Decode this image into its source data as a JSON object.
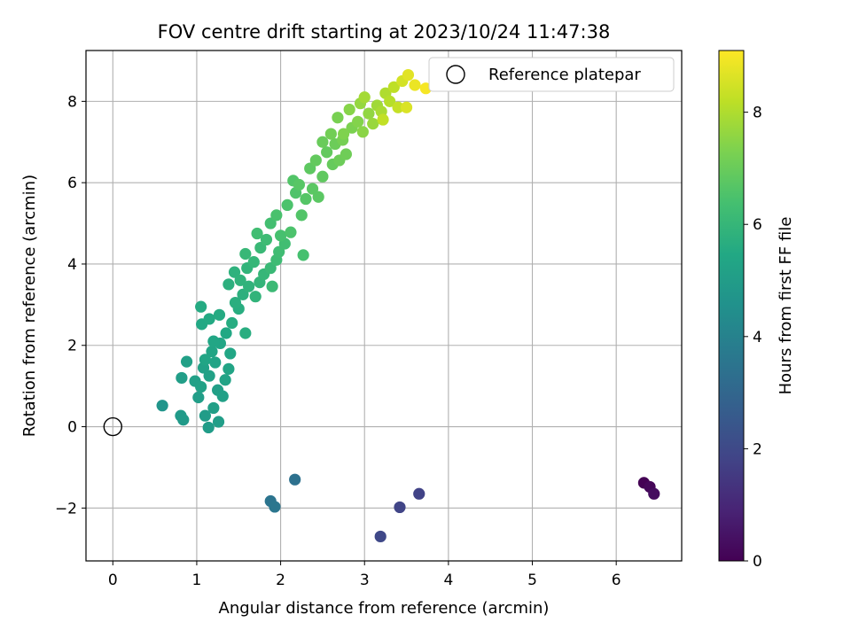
{
  "chart_data": {
    "type": "scatter",
    "title": "FOV centre drift starting at 2023/10/24 11:47:38",
    "xlabel": "Angular distance from reference (arcmin)",
    "ylabel": "Rotation from reference (arcmin)",
    "xlim": [
      -0.32,
      6.78
    ],
    "ylim": [
      -3.3,
      9.25
    ],
    "xticks": [
      0,
      1,
      2,
      3,
      4,
      5,
      6
    ],
    "yticks": [
      -2,
      0,
      2,
      4,
      6,
      8
    ],
    "grid": true,
    "legend": {
      "position": "top-right",
      "entries": [
        "Reference platepar"
      ]
    },
    "reference_point": {
      "x": 0,
      "y": 0,
      "marker": "open-circle"
    },
    "colorbar": {
      "label": "Hours from first FF file",
      "colormap": "viridis",
      "range": [
        0,
        9.1
      ],
      "ticks": [
        0,
        2,
        4,
        6,
        8
      ]
    },
    "series": [
      {
        "color_by": "hours",
        "points": [
          [
            6.33,
            -1.38,
            0.0
          ],
          [
            6.4,
            -1.48,
            0.15
          ],
          [
            6.45,
            -1.65,
            0.3
          ],
          [
            3.65,
            -1.65,
            1.8
          ],
          [
            3.42,
            -1.98,
            1.85
          ],
          [
            3.19,
            -2.7,
            1.95
          ],
          [
            2.17,
            -1.3,
            3.4
          ],
          [
            1.88,
            -1.83,
            3.5
          ],
          [
            1.93,
            -1.97,
            3.55
          ],
          [
            0.59,
            0.52,
            4.7
          ],
          [
            0.81,
            0.27,
            4.9
          ],
          [
            0.84,
            0.17,
            4.9
          ],
          [
            1.14,
            -0.02,
            5.0
          ],
          [
            1.1,
            0.27,
            5.0
          ],
          [
            1.26,
            0.12,
            5.05
          ],
          [
            0.82,
            1.2,
            5.05
          ],
          [
            1.02,
            0.72,
            5.05
          ],
          [
            1.2,
            0.46,
            5.1
          ],
          [
            1.25,
            0.9,
            5.1
          ],
          [
            1.31,
            0.75,
            5.15
          ],
          [
            0.88,
            1.6,
            5.15
          ],
          [
            0.98,
            1.12,
            5.15
          ],
          [
            1.08,
            1.45,
            5.2
          ],
          [
            1.15,
            1.25,
            5.2
          ],
          [
            1.05,
            0.98,
            5.2
          ],
          [
            1.22,
            1.58,
            5.25
          ],
          [
            1.34,
            1.15,
            5.25
          ],
          [
            1.18,
            1.85,
            5.3
          ],
          [
            1.38,
            1.42,
            5.3
          ],
          [
            1.28,
            2.05,
            5.35
          ],
          [
            1.1,
            1.65,
            5.35
          ],
          [
            1.4,
            1.8,
            5.4
          ],
          [
            1.2,
            2.1,
            5.4
          ],
          [
            1.35,
            2.3,
            5.45
          ],
          [
            1.06,
            2.52,
            5.45
          ],
          [
            1.15,
            2.65,
            5.5
          ],
          [
            1.05,
            2.95,
            5.55
          ],
          [
            1.27,
            2.75,
            5.55
          ],
          [
            1.42,
            2.55,
            5.6
          ],
          [
            1.5,
            2.9,
            5.65
          ],
          [
            1.58,
            2.3,
            5.65
          ],
          [
            1.46,
            3.05,
            5.7
          ],
          [
            1.38,
            3.5,
            5.75
          ],
          [
            1.55,
            3.25,
            5.75
          ],
          [
            1.45,
            3.8,
            5.8
          ],
          [
            1.62,
            3.45,
            5.85
          ],
          [
            1.52,
            3.6,
            5.85
          ],
          [
            1.7,
            3.2,
            5.9
          ],
          [
            1.6,
            3.9,
            5.9
          ],
          [
            1.75,
            3.55,
            5.95
          ],
          [
            1.68,
            4.05,
            6.0
          ],
          [
            1.8,
            3.75,
            6.0
          ],
          [
            1.58,
            4.25,
            6.05
          ],
          [
            1.88,
            3.9,
            6.1
          ],
          [
            1.76,
            4.4,
            6.1
          ],
          [
            1.9,
            3.45,
            6.15
          ],
          [
            1.95,
            4.1,
            6.2
          ],
          [
            1.83,
            4.6,
            6.2
          ],
          [
            1.98,
            4.3,
            6.25
          ],
          [
            1.72,
            4.75,
            6.3
          ],
          [
            2.05,
            4.5,
            6.3
          ],
          [
            1.88,
            5.0,
            6.35
          ],
          [
            2.0,
            4.7,
            6.4
          ],
          [
            2.27,
            4.22,
            6.4
          ],
          [
            1.95,
            5.2,
            6.45
          ],
          [
            2.12,
            4.78,
            6.5
          ],
          [
            2.08,
            5.45,
            6.5
          ],
          [
            2.18,
            5.75,
            6.55
          ],
          [
            2.25,
            5.2,
            6.6
          ],
          [
            2.15,
            6.05,
            6.6
          ],
          [
            2.3,
            5.6,
            6.65
          ],
          [
            2.22,
            5.95,
            6.7
          ],
          [
            2.38,
            5.85,
            6.75
          ],
          [
            2.45,
            5.65,
            6.75
          ],
          [
            2.35,
            6.35,
            6.8
          ],
          [
            2.5,
            6.15,
            6.85
          ],
          [
            2.42,
            6.55,
            6.9
          ],
          [
            2.55,
            6.75,
            6.9
          ],
          [
            2.62,
            6.45,
            6.95
          ],
          [
            2.5,
            7.0,
            7.0
          ],
          [
            2.7,
            6.55,
            7.05
          ],
          [
            2.65,
            6.95,
            7.05
          ],
          [
            2.78,
            6.7,
            7.1
          ],
          [
            2.6,
            7.2,
            7.15
          ],
          [
            2.74,
            7.05,
            7.2
          ],
          [
            2.68,
            7.6,
            7.25
          ],
          [
            2.85,
            7.35,
            7.3
          ],
          [
            2.75,
            7.2,
            7.35
          ],
          [
            2.92,
            7.5,
            7.4
          ],
          [
            2.82,
            7.8,
            7.45
          ],
          [
            2.98,
            7.25,
            7.5
          ],
          [
            3.05,
            7.7,
            7.6
          ],
          [
            2.95,
            7.95,
            7.65
          ],
          [
            3.1,
            7.45,
            7.7
          ],
          [
            3.15,
            7.9,
            7.8
          ],
          [
            3.0,
            8.1,
            7.85
          ],
          [
            3.2,
            7.75,
            7.9
          ],
          [
            3.25,
            8.2,
            8.0
          ],
          [
            3.3,
            8.0,
            8.1
          ],
          [
            3.35,
            8.35,
            8.2
          ],
          [
            3.22,
            7.55,
            8.25
          ],
          [
            3.4,
            7.85,
            8.3
          ],
          [
            3.45,
            8.5,
            8.5
          ],
          [
            3.5,
            7.85,
            8.6
          ],
          [
            3.52,
            8.65,
            8.7
          ],
          [
            3.6,
            8.4,
            8.85
          ],
          [
            3.73,
            8.32,
            9.0
          ]
        ]
      }
    ]
  }
}
